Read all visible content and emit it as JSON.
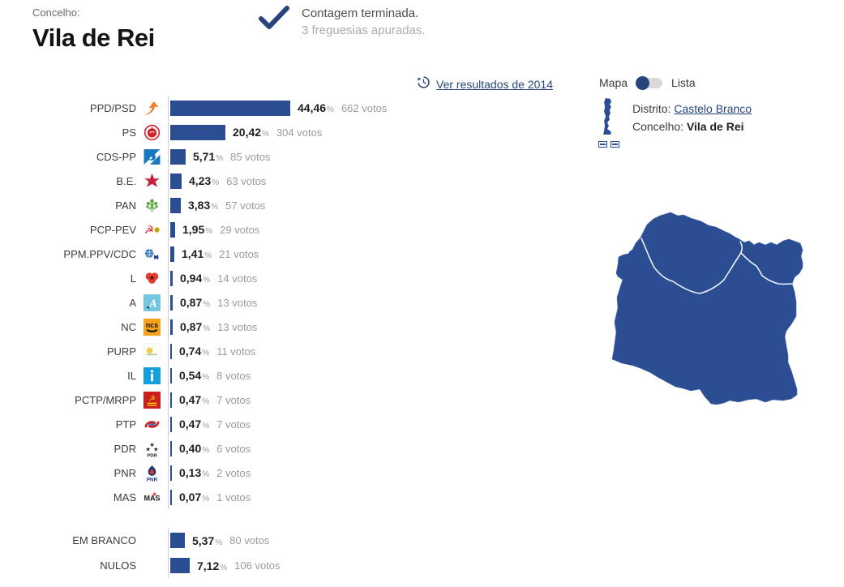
{
  "header": {
    "kicker": "Concelho:",
    "title": "Vila de Rei"
  },
  "status": {
    "check_icon": "check-icon",
    "line1": "Contagem terminada.",
    "line2": "3 freguesias apuradas."
  },
  "toolbar": {
    "history_icon": "history-clock-icon",
    "history_link": "Ver resultados de 2014",
    "map_label": "Mapa",
    "list_label": "Lista",
    "toggle_state": "map"
  },
  "location": {
    "mini_map_icon": "portugal-mini-map-icon",
    "district_label": "Distrito:",
    "district_value": "Castelo Branco",
    "council_label": "Concelho:",
    "council_value": "Vila de Rei"
  },
  "results": {
    "percent_suffix": "%",
    "votes_suffix": "votos",
    "parties": [
      {
        "name": "PPD/PSD",
        "icon": "psd-arrow-icon",
        "percent": "44,46",
        "votes": "662"
      },
      {
        "name": "PS",
        "icon": "ps-fist-rose-icon",
        "percent": "20,42",
        "votes": "304"
      },
      {
        "name": "CDS-PP",
        "icon": "cds-pp-circle-icon",
        "percent": "5,71",
        "votes": "85"
      },
      {
        "name": "B.E.",
        "icon": "be-star-icon",
        "percent": "4,23",
        "votes": "63"
      },
      {
        "name": "PAN",
        "icon": "pan-tree-icon",
        "percent": "3,83",
        "votes": "57"
      },
      {
        "name": "PCP-PEV",
        "icon": "pcp-pev-hammer-sickle-icon",
        "percent": "1,95",
        "votes": "29"
      },
      {
        "name": "PPM.PPV/CDC",
        "icon": "ppm-ppv-cdc-globe-icon",
        "percent": "1,41",
        "votes": "21"
      },
      {
        "name": "L",
        "icon": "livre-poppy-icon",
        "percent": "0,94",
        "votes": "14"
      },
      {
        "name": "A",
        "icon": "alianca-a-icon",
        "percent": "0,87",
        "votes": "13"
      },
      {
        "name": "NC",
        "icon": "nc-ncs-icon",
        "percent": "0,87",
        "votes": "13"
      },
      {
        "name": "PURP",
        "icon": "purp-sun-icon",
        "percent": "0,74",
        "votes": "11"
      },
      {
        "name": "IL",
        "icon": "il-i-icon",
        "percent": "0,54",
        "votes": "8"
      },
      {
        "name": "PCTP/MRPP",
        "icon": "pctp-mrpp-hammer-icon",
        "percent": "0,47",
        "votes": "7"
      },
      {
        "name": "PTP",
        "icon": "ptp-swirl-icon",
        "percent": "0,47",
        "votes": "7"
      },
      {
        "name": "PDR",
        "icon": "pdr-stars-icon",
        "percent": "0,40",
        "votes": "6"
      },
      {
        "name": "PNR",
        "icon": "pnr-flame-icon",
        "percent": "0,13",
        "votes": "2"
      },
      {
        "name": "MAS",
        "icon": "mas-star-icon",
        "percent": "0,07",
        "votes": "1"
      }
    ],
    "special": [
      {
        "name": "EM BRANCO",
        "percent": "5,37",
        "votes": "80"
      },
      {
        "name": "NULOS",
        "percent": "7,12",
        "votes": "106"
      }
    ]
  },
  "colors": {
    "bar": "#2b4e92",
    "accent": "#27457c",
    "map_fill": "#2b4e92",
    "map_border": "#e9f0fa",
    "axis": "#cfcfcf",
    "toggle_track": "#d9d9d9"
  }
}
